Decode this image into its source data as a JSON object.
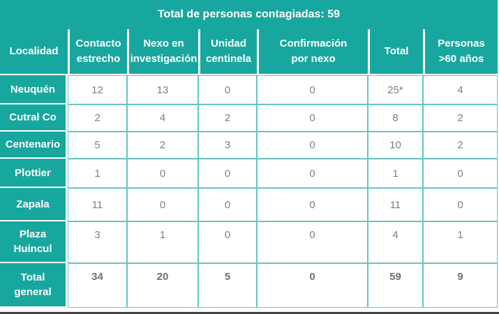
{
  "title": "Total de personas contagiadas: 59",
  "colors": {
    "teal": "#18a79f",
    "cell_border": "#66c6c0",
    "value_text": "#7f7f7f",
    "bottom_line": "#434343"
  },
  "table": {
    "columns": [
      "Localidad",
      "Contacto\nestrecho",
      "Nexo en\ninvestigación",
      "Unidad\ncentinela",
      "Confirmación\npor nexo",
      "Total",
      "Personas\n>60 años"
    ],
    "rows": [
      {
        "localidad": "Neuquén",
        "values": [
          "12",
          "13",
          "0",
          "0",
          "25*",
          "4"
        ]
      },
      {
        "localidad": "Cutral Co",
        "values": [
          "2",
          "4",
          "2",
          "0",
          "8",
          "2"
        ]
      },
      {
        "localidad": "Centenario",
        "values": [
          "5",
          "2",
          "3",
          "0",
          "10",
          "2"
        ]
      },
      {
        "localidad": "Plottier",
        "values": [
          "1",
          "0",
          "0",
          "0",
          "1",
          "0"
        ]
      },
      {
        "localidad": "Zapala",
        "values": [
          "11",
          "0",
          "0",
          "0",
          "11",
          "0"
        ]
      },
      {
        "localidad": "Plaza\nHuincul",
        "values": [
          "3",
          "1",
          "0",
          "0",
          "4",
          "1"
        ]
      }
    ],
    "total_row": {
      "localidad": "Total\ngeneral",
      "values": [
        "34",
        "20",
        "5",
        "0",
        "59",
        "9"
      ]
    }
  },
  "chart_data": {
    "type": "table",
    "title": "Total de personas contagiadas: 59",
    "columns": [
      "Localidad",
      "Contacto estrecho",
      "Nexo en investigación",
      "Unidad centinela",
      "Confirmación por nexo",
      "Total",
      "Personas >60 años"
    ],
    "rows": [
      [
        "Neuquén",
        12,
        13,
        0,
        0,
        "25*",
        4
      ],
      [
        "Cutral Co",
        2,
        4,
        2,
        0,
        8,
        2
      ],
      [
        "Centenario",
        5,
        2,
        3,
        0,
        10,
        2
      ],
      [
        "Plottier",
        1,
        0,
        0,
        0,
        1,
        0
      ],
      [
        "Zapala",
        11,
        0,
        0,
        0,
        11,
        0
      ],
      [
        "Plaza Huincul",
        3,
        1,
        0,
        0,
        4,
        1
      ],
      [
        "Total general",
        34,
        20,
        5,
        0,
        59,
        9
      ]
    ]
  }
}
